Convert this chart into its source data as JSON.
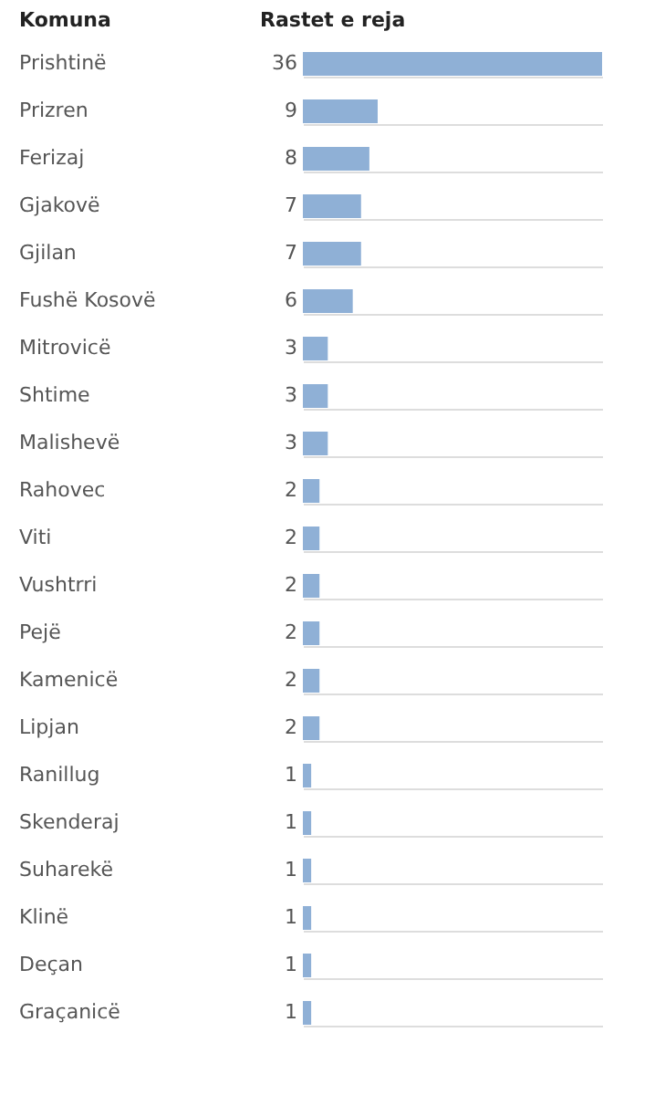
{
  "chart_data": {
    "type": "bar",
    "orientation": "horizontal",
    "xlim": [
      0,
      36
    ],
    "xlabel": "Rastet e reja",
    "ylabel": "Komuna",
    "categories": [
      "Prishtinë",
      "Prizren",
      "Ferizaj",
      "Gjakovë",
      "Gjilan",
      "Fushë Kosovë",
      "Mitrovicë",
      "Shtime",
      "Malishevë",
      "Rahovec",
      "Viti",
      "Vushtrri",
      "Pejë",
      "Kamenicë",
      "Lipjan",
      "Ranillug",
      "Skenderaj",
      "Suharekë",
      "Klinë",
      "Deçan",
      "Graçanicë"
    ],
    "values": [
      36,
      9,
      8,
      7,
      7,
      6,
      3,
      3,
      3,
      2,
      2,
      2,
      2,
      2,
      2,
      1,
      1,
      1,
      1,
      1,
      1
    ],
    "color": "#8fb0d6",
    "data_labels": true,
    "grid": "y"
  }
}
